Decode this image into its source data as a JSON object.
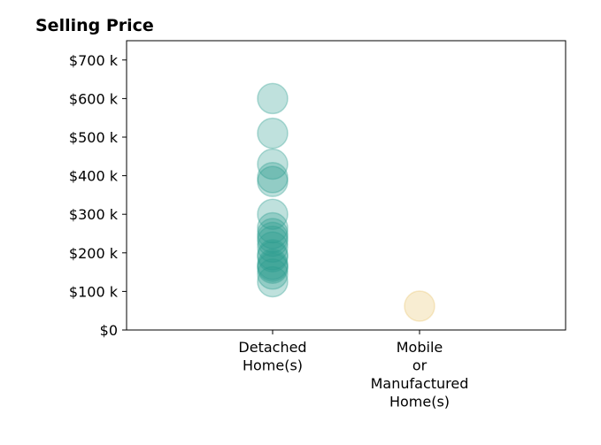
{
  "chart_data": {
    "type": "scatter",
    "title": "Selling Price",
    "xlabel": "",
    "ylabel": "",
    "categories": [
      [
        "Detached",
        "Home(s)"
      ],
      [
        "Mobile",
        "or",
        "Manufactured",
        "Home(s)"
      ]
    ],
    "ylim": [
      0,
      750000
    ],
    "yticks": [
      {
        "value": 0,
        "label": "$0"
      },
      {
        "value": 100000,
        "label": "$100 k"
      },
      {
        "value": 200000,
        "label": "$200 k"
      },
      {
        "value": 300000,
        "label": "$300 k"
      },
      {
        "value": 400000,
        "label": "$400 k"
      },
      {
        "value": 500000,
        "label": "$500 k"
      },
      {
        "value": 600000,
        "label": "$600 k"
      },
      {
        "value": 700000,
        "label": "$700 k"
      }
    ],
    "grid": false,
    "series": [
      {
        "category_index": 0,
        "color": "#2a9d8f",
        "values": [
          600000,
          510000,
          430000,
          395000,
          385000,
          300000,
          265000,
          250000,
          240000,
          230000,
          215000,
          195000,
          190000,
          170000,
          165000,
          160000,
          145000,
          125000
        ]
      },
      {
        "category_index": 1,
        "color": "#e9c46a",
        "values": [
          62000
        ]
      }
    ]
  }
}
